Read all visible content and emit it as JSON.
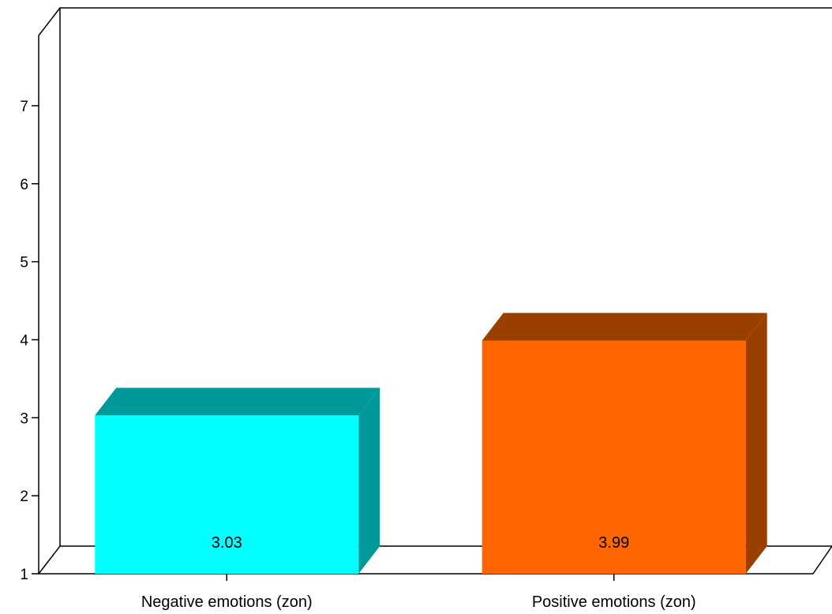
{
  "chart_data": {
    "type": "bar",
    "categories": [
      "Negative emotions (zon)",
      "Positive emotions (zon)"
    ],
    "values": [
      3.03,
      3.99
    ],
    "data_labels": [
      "3.03",
      "3.99"
    ],
    "yticks": [
      "1",
      "2",
      "3",
      "4",
      "5",
      "6",
      "7"
    ],
    "ylim": [
      1,
      7.9
    ],
    "title": "",
    "xlabel": "",
    "ylabel": "",
    "grid": false,
    "style": "3d",
    "colors": {
      "front": [
        "#00ffff",
        "#ff6600"
      ],
      "top": [
        "#009999",
        "#993f00"
      ],
      "side": [
        "#009999",
        "#993f00"
      ]
    }
  }
}
